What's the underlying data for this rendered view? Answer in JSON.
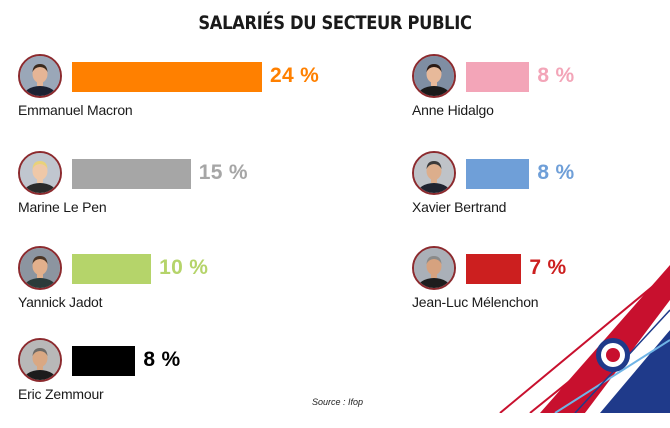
{
  "title": "SALARIÉS DU SECTEUR PUBLIC",
  "source": "Source :  Ifop",
  "chart_data": {
    "type": "bar",
    "title": "SALARIÉS DU SECTEUR PUBLIC",
    "unit": "%",
    "categories": [
      "Emmanuel Macron",
      "Marine Le Pen",
      "Yannick Jadot",
      "Eric Zemmour",
      "Anne Hidalgo",
      "Xavier Bertrand",
      "Jean-Luc Mélenchon"
    ],
    "values": [
      24,
      15,
      10,
      8,
      8,
      8,
      7
    ],
    "labels": [
      "24 %",
      "15 %",
      "10 %",
      "8 %",
      "8 %",
      "8 %",
      "7 %"
    ],
    "colors": [
      "#ff8000",
      "#a6a6a6",
      "#b5d46a",
      "#000000",
      "#f3a5b8",
      "#6f9fd8",
      "#cc1f1f"
    ],
    "text_colors": [
      "#ff8000",
      "#a6a6a6",
      "#b5d46a",
      "#000000",
      "#f3a5b8",
      "#6f9fd8",
      "#cc1f1f"
    ],
    "orientation": "horizontal",
    "xlim": [
      0,
      24
    ],
    "grid": false,
    "legend": "none"
  }
}
